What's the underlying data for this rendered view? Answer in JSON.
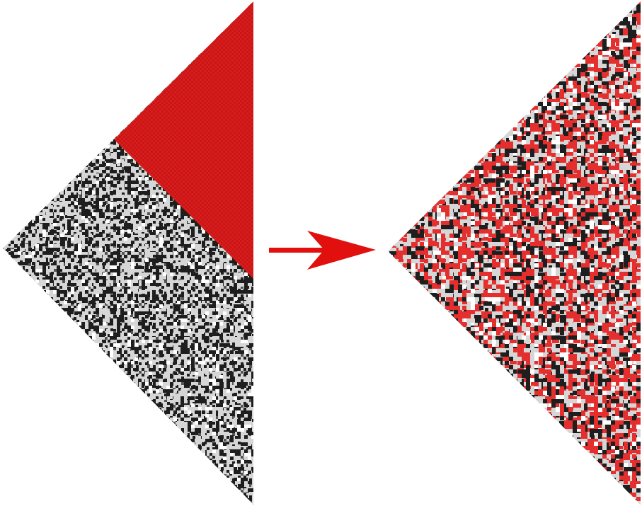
{
  "figure": {
    "left_panel": {
      "name": "initial-state-triangle",
      "upper_region_color": "#d91c1c",
      "lower_region_palette": [
        "#1e1e1e",
        "#d6d6d6",
        "#555555",
        "#ffffff"
      ]
    },
    "transition_arrow": {
      "color": "#e20f0f"
    },
    "right_panel": {
      "name": "result-state-triangle",
      "palette": [
        "#1e1e1e",
        "#d6d6d6",
        "#e52f2f",
        "#ffffff",
        "#8a8a8a"
      ]
    }
  }
}
